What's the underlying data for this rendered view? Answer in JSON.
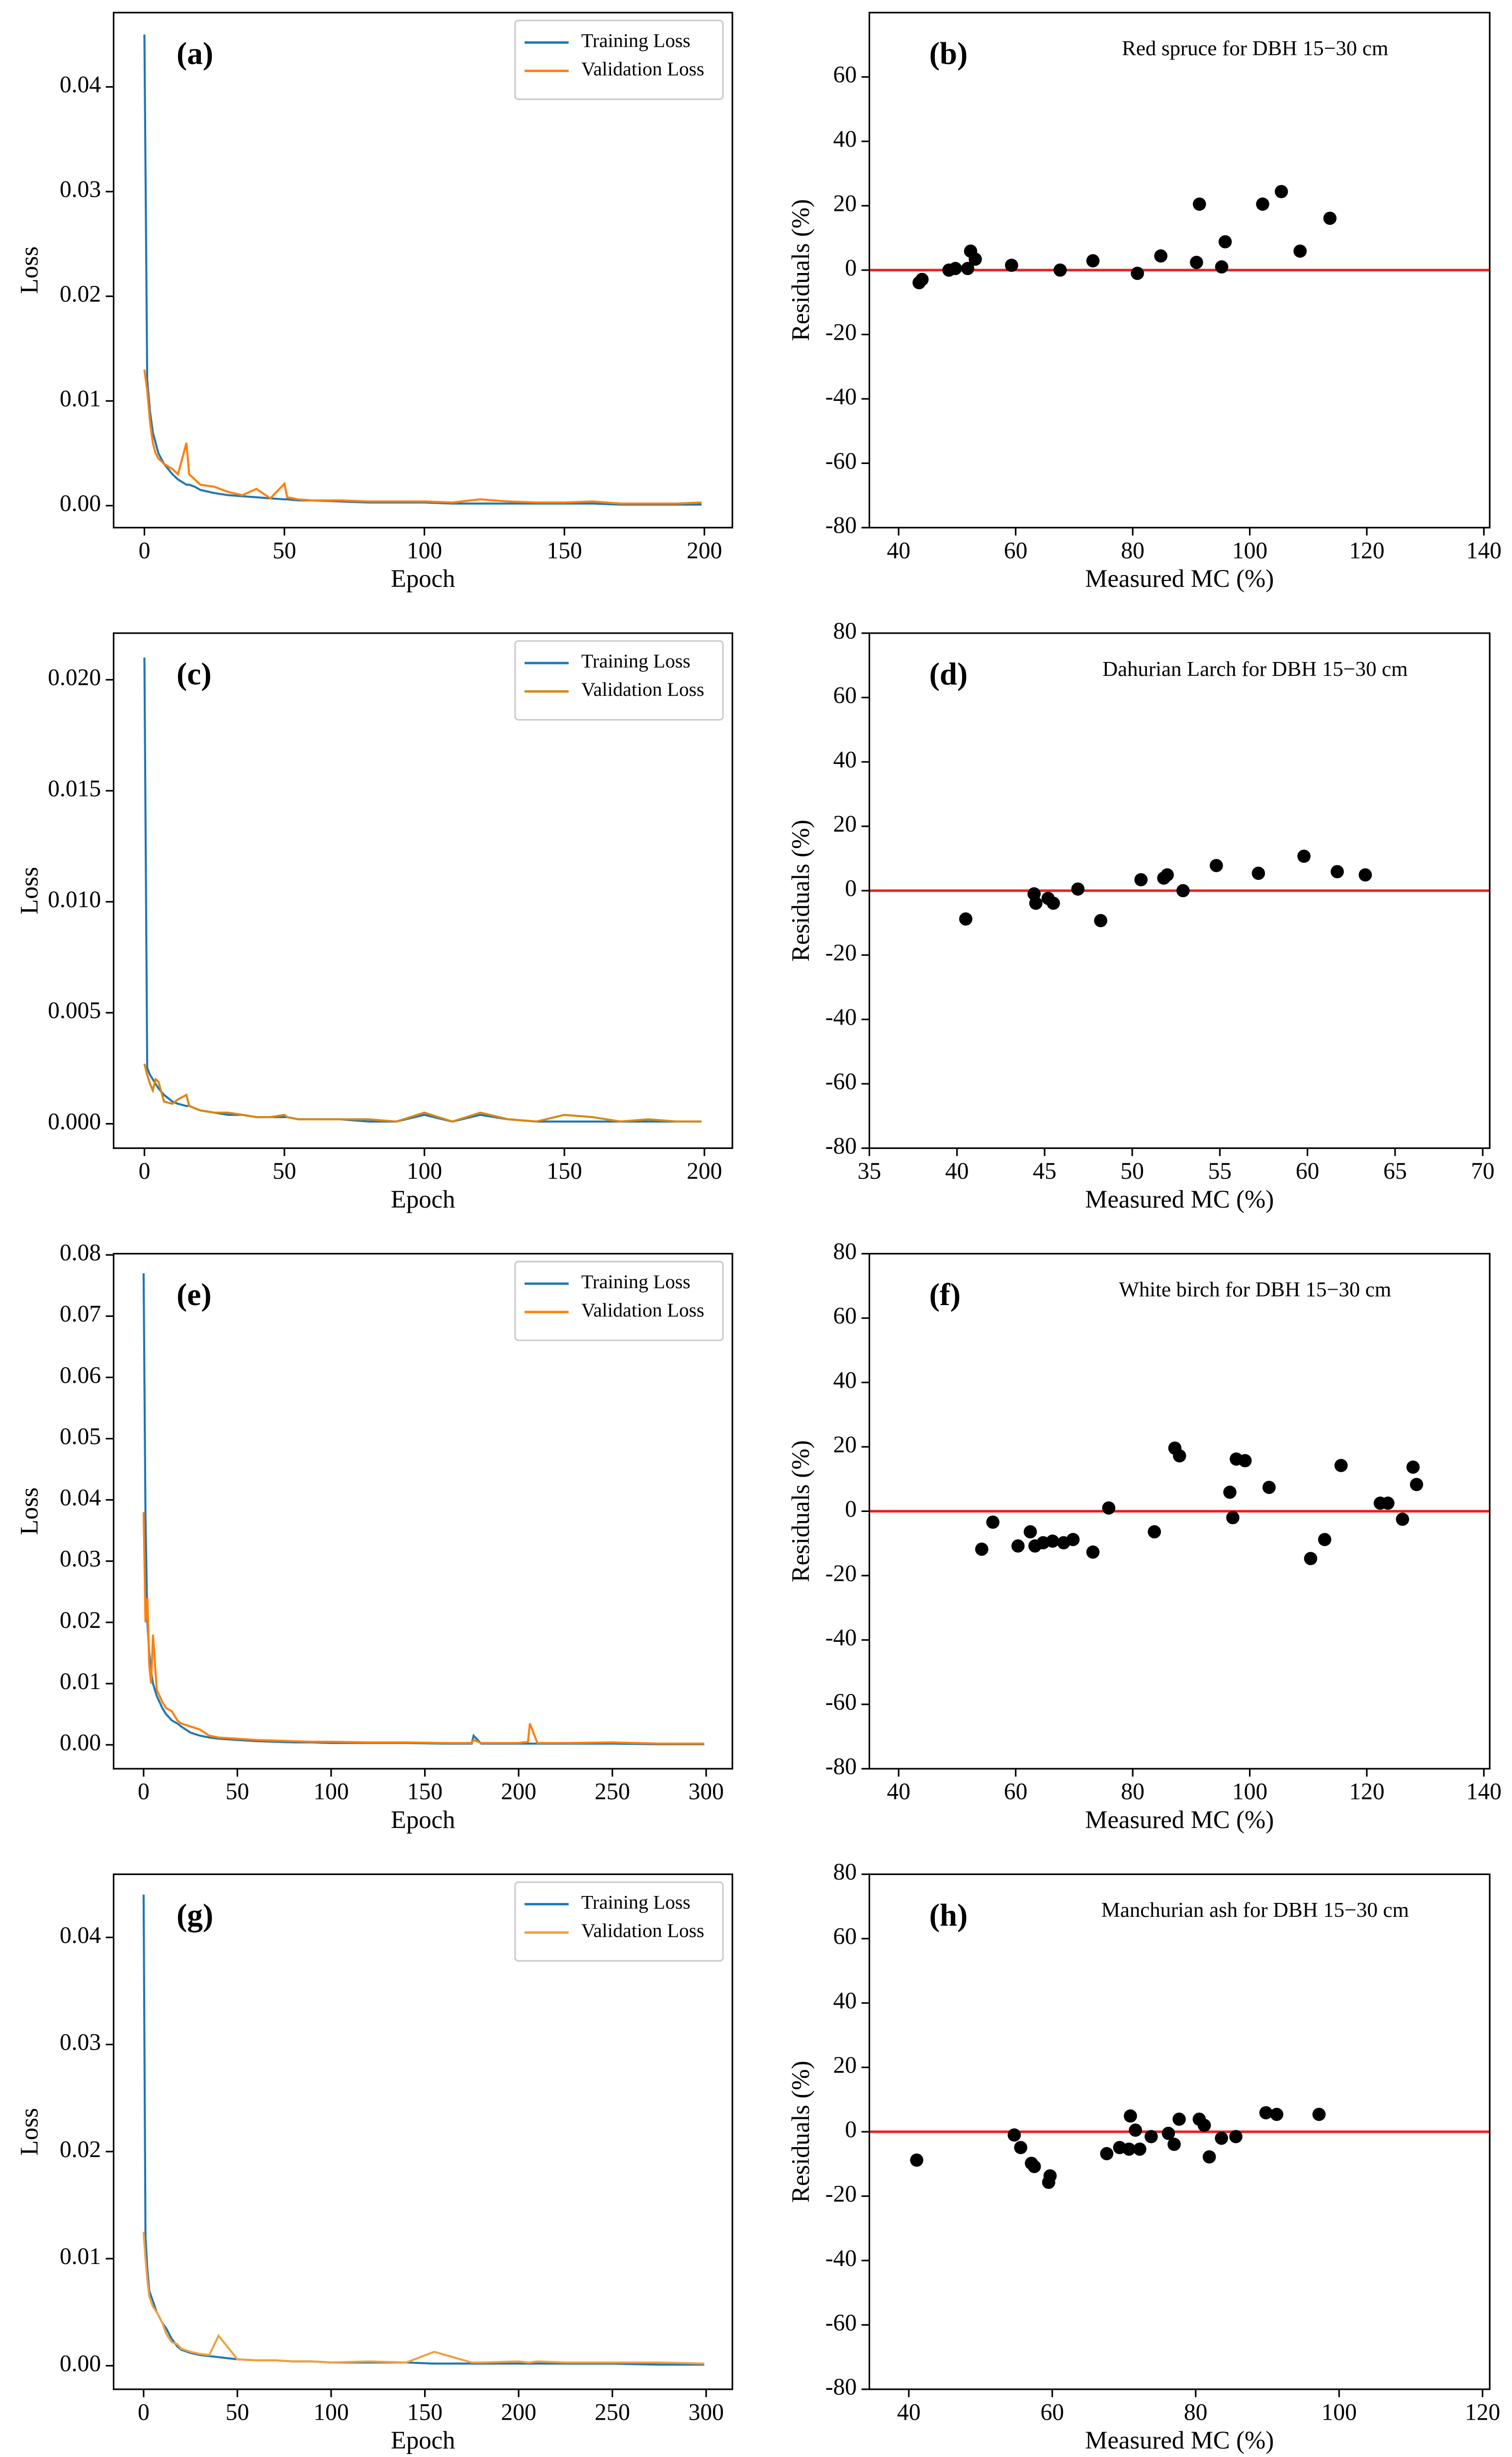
{
  "chart_data": [
    {
      "type": "line",
      "label": "(a)",
      "x_label": "Epoch",
      "y_label": "Loss",
      "legend": "upper right",
      "xlim": [
        -11,
        210
      ],
      "ylim": [
        -0.0021,
        0.0471
      ],
      "xticks": [
        0,
        50,
        100,
        150,
        200
      ],
      "yticks": [
        {
          "value": 0,
          "label": "0.00"
        },
        0.01,
        0.02,
        0.03,
        0.04
      ],
      "x": [
        0,
        1,
        2,
        3,
        4,
        5,
        7,
        10,
        12,
        15,
        16,
        18,
        20,
        25,
        30,
        35,
        40,
        45,
        50,
        51,
        55,
        60,
        70,
        80,
        90,
        100,
        110,
        120,
        130,
        140,
        150,
        160,
        170,
        180,
        190,
        199
      ],
      "series": [
        {
          "name": "Training Loss",
          "color": "#1f77b4",
          "values": [
            0.045,
            0.012,
            0.009,
            0.007,
            0.006,
            0.005,
            0.004,
            0.003,
            0.0025,
            0.002,
            0.002,
            0.0018,
            0.0015,
            0.0012,
            0.001,
            0.0009,
            0.0008,
            0.0007,
            0.0006,
            0.0006,
            0.0005,
            0.0005,
            0.0004,
            0.0003,
            0.0003,
            0.0003,
            0.0002,
            0.0002,
            0.0002,
            0.0002,
            0.0002,
            0.0002,
            0.0001,
            0.0001,
            0.0001,
            0.0001
          ]
        },
        {
          "name": "Validation Loss",
          "color": "#ff7f0e",
          "values": [
            0.013,
            0.011,
            0.008,
            0.006,
            0.005,
            0.0045,
            0.004,
            0.0035,
            0.003,
            0.006,
            0.003,
            0.0025,
            0.002,
            0.0018,
            0.0013,
            0.001,
            0.0016,
            0.0007,
            0.0021,
            0.0008,
            0.0006,
            0.0005,
            0.0005,
            0.0004,
            0.0004,
            0.0004,
            0.0003,
            0.0006,
            0.0004,
            0.0003,
            0.0003,
            0.0004,
            0.0002,
            0.0002,
            0.0002,
            0.0003
          ]
        }
      ]
    },
    {
      "type": "scatter",
      "label": "(b)",
      "title": "Red spruce for DBH 15−30 cm",
      "x_label": "Measured MC (%)",
      "y_label": "Residuals (%)",
      "xlim": [
        35,
        141
      ],
      "ylim": [
        -80,
        80
      ],
      "xticks": [
        40,
        60,
        80,
        100,
        120,
        140
      ],
      "yticks": [
        -80,
        -60,
        -40,
        -20,
        0,
        20,
        40,
        60
      ],
      "reference_line": {
        "y": 0,
        "color": "#e8221f"
      },
      "color": "#000000",
      "x": [
        43.5,
        44,
        48.6,
        49.7,
        51.8,
        52.3,
        53.1,
        59.3,
        67.6,
        73.2,
        80.8,
        84.8,
        90.9,
        91.4,
        95.2,
        95.8,
        102.2,
        105.4,
        108.6,
        113.7
      ],
      "values": [
        -3.9,
        -2.9,
        0,
        0.5,
        0.5,
        5.9,
        3.4,
        1.5,
        0,
        2.9,
        -1,
        4.4,
        2.4,
        20.5,
        1,
        8.8,
        20.5,
        24.4,
        5.9,
        16.1
      ]
    },
    {
      "type": "line",
      "label": "(c)",
      "x_label": "Epoch",
      "y_label": "Loss",
      "legend": "upper right",
      "xlim": [
        -11,
        210
      ],
      "ylim": [
        -0.0011,
        0.0221
      ],
      "xticks": [
        0,
        50,
        100,
        150,
        200
      ],
      "yticks": [
        {
          "value": 0,
          "label": "0.000"
        },
        0.005,
        {
          "value": 0.01,
          "label": "0.010"
        },
        0.015,
        {
          "value": 0.02,
          "label": "0.020"
        }
      ],
      "x": [
        0,
        1,
        2,
        3,
        4,
        5,
        7,
        10,
        12,
        15,
        16,
        18,
        20,
        25,
        30,
        35,
        40,
        45,
        50,
        51,
        55,
        60,
        70,
        80,
        90,
        100,
        110,
        120,
        130,
        140,
        150,
        160,
        170,
        180,
        190,
        199
      ],
      "series": [
        {
          "name": "Training Loss",
          "color": "#1f77b4",
          "values": [
            0.021,
            0.0025,
            0.0022,
            0.002,
            0.0018,
            0.0016,
            0.0013,
            0.001,
            0.0009,
            0.0008,
            0.0008,
            0.0007,
            0.0006,
            0.0005,
            0.0004,
            0.0004,
            0.0003,
            0.0003,
            0.0003,
            0.0003,
            0.0002,
            0.0002,
            0.0002,
            0.0001,
            0.0001,
            0.0004,
            0.0001,
            0.0004,
            0.0002,
            0.0001,
            0.0001,
            0.0001,
            0.0001,
            0.0001,
            0.0001,
            0.0001
          ]
        },
        {
          "name": "Validation Loss",
          "color": "#d9860f",
          "values": [
            0.0027,
            0.0022,
            0.0018,
            0.0015,
            0.002,
            0.0019,
            0.001,
            0.0009,
            0.0011,
            0.0013,
            0.0008,
            0.0007,
            0.0006,
            0.0005,
            0.0005,
            0.0004,
            0.0003,
            0.0003,
            0.0004,
            0.0003,
            0.0002,
            0.0002,
            0.0002,
            0.0002,
            0.0001,
            0.0005,
            0.0001,
            0.0005,
            0.0002,
            0.0001,
            0.0004,
            0.0003,
            0.0001,
            0.0002,
            0.0001,
            0.0001
          ]
        }
      ]
    },
    {
      "type": "scatter",
      "label": "(d)",
      "title": "Dahurian Larch for DBH 15−30 cm",
      "x_label": "Measured MC (%)",
      "y_label": "Residuals (%)",
      "xlim": [
        35,
        70.4
      ],
      "ylim": [
        -80,
        80
      ],
      "xticks": [
        35,
        40,
        45,
        50,
        55,
        60,
        65,
        70
      ],
      "yticks": [
        -80,
        -60,
        -40,
        -20,
        0,
        20,
        40,
        60,
        80
      ],
      "reference_line": {
        "y": 0,
        "color": "#e8221f"
      },
      "color": "#000000",
      "x": [
        40.5,
        44.4,
        44.5,
        45.2,
        45.5,
        46.9,
        48.2,
        50.5,
        51.8,
        52,
        52.9,
        54.8,
        57.2,
        59.8,
        61.7,
        63.3
      ],
      "values": [
        -8.8,
        -1,
        -3.9,
        -2.4,
        -3.9,
        0.5,
        -9.3,
        3.4,
        3.9,
        4.9,
        0,
        7.8,
        5.4,
        10.7,
        5.9,
        4.9
      ]
    },
    {
      "type": "line",
      "label": "(e)",
      "x_label": "Epoch",
      "y_label": "Loss",
      "legend": "upper right",
      "xlim": [
        -16,
        314
      ],
      "ylim": [
        -0.0039,
        0.0802
      ],
      "xticks": [
        0,
        50,
        100,
        150,
        200,
        250,
        300
      ],
      "yticks": [
        {
          "value": 0,
          "label": "0.00"
        },
        0.01,
        0.02,
        0.03,
        0.04,
        0.05,
        0.06,
        0.07,
        0.08
      ],
      "x": [
        0,
        1,
        2,
        3,
        4,
        5,
        7,
        10,
        12,
        15,
        18,
        20,
        25,
        30,
        35,
        40,
        50,
        60,
        70,
        80,
        90,
        100,
        120,
        140,
        160,
        175,
        176,
        180,
        200,
        205,
        206,
        210,
        225,
        250,
        275,
        299
      ],
      "series": [
        {
          "name": "Training Loss",
          "color": "#1f77b4",
          "values": [
            0.077,
            0.037,
            0.02,
            0.015,
            0.012,
            0.01,
            0.008,
            0.006,
            0.005,
            0.004,
            0.0035,
            0.003,
            0.002,
            0.0015,
            0.0012,
            0.001,
            0.0008,
            0.0006,
            0.0005,
            0.0004,
            0.0004,
            0.0003,
            0.0003,
            0.0003,
            0.0002,
            0.0002,
            0.0015,
            0.0002,
            0.0002,
            0.0002,
            0.0002,
            0.0002,
            0.0002,
            0.0002,
            0.0001,
            0.0001
          ]
        },
        {
          "name": "Validation Loss",
          "color": "#ff7f0e",
          "values": [
            0.038,
            0.02,
            0.024,
            0.013,
            0.01,
            0.018,
            0.009,
            0.007,
            0.006,
            0.0055,
            0.004,
            0.0035,
            0.003,
            0.0025,
            0.0015,
            0.0012,
            0.001,
            0.0008,
            0.0007,
            0.0006,
            0.0005,
            0.0005,
            0.0004,
            0.0004,
            0.0003,
            0.0003,
            0.0008,
            0.0003,
            0.0003,
            0.0005,
            0.0035,
            0.0003,
            0.0003,
            0.0004,
            0.0002,
            0.0002
          ]
        }
      ]
    },
    {
      "type": "scatter",
      "label": "(f)",
      "title": "White birch for DBH 15−30 cm",
      "x_label": "Measured MC (%)",
      "y_label": "Residuals (%)",
      "xlim": [
        35,
        141
      ],
      "ylim": [
        -80,
        80
      ],
      "xticks": [
        40,
        60,
        80,
        100,
        120,
        140
      ],
      "yticks": [
        -80,
        -60,
        -40,
        -20,
        0,
        20,
        40,
        60,
        80
      ],
      "reference_line": {
        "y": 0,
        "color": "#e8221f"
      },
      "color": "#000000",
      "x": [
        54.2,
        56.1,
        60.4,
        62.5,
        63.3,
        64.7,
        66.3,
        68.2,
        69.8,
        73.2,
        75.9,
        83.7,
        87.2,
        88,
        96.6,
        97.1,
        97.7,
        99.2,
        103.3,
        110.4,
        112.8,
        115.6,
        122.3,
        123.6,
        126.1,
        127.9,
        128.5
      ],
      "values": [
        -11.8,
        -3.4,
        -10.8,
        -6.4,
        -10.8,
        -9.8,
        -9.3,
        -9.8,
        -8.8,
        -12.7,
        1,
        -6.4,
        19.6,
        17.2,
        5.9,
        -2,
        16.2,
        15.7,
        7.4,
        -14.7,
        -8.8,
        14.2,
        2.5,
        2.5,
        -2.5,
        13.7,
        8.3
      ]
    },
    {
      "type": "line",
      "label": "(g)",
      "x_label": "Epoch",
      "y_label": "Loss",
      "legend": "upper right",
      "xlim": [
        -16,
        314
      ],
      "ylim": [
        -0.0022,
        0.0459
      ],
      "xticks": [
        0,
        50,
        100,
        150,
        200,
        250,
        300
      ],
      "yticks": [
        {
          "value": 0,
          "label": "0.00"
        },
        0.01,
        0.02,
        0.03,
        0.04
      ],
      "x": [
        0,
        1,
        2,
        3,
        4,
        5,
        7,
        10,
        12,
        15,
        18,
        20,
        25,
        30,
        35,
        40,
        50,
        60,
        70,
        80,
        90,
        100,
        120,
        140,
        155,
        175,
        176,
        180,
        200,
        205,
        206,
        210,
        225,
        250,
        275,
        299
      ],
      "series": [
        {
          "name": "Training Loss",
          "color": "#1f77b4",
          "values": [
            0.044,
            0.012,
            0.009,
            0.007,
            0.0065,
            0.006,
            0.005,
            0.004,
            0.0035,
            0.0025,
            0.0018,
            0.0015,
            0.0012,
            0.001,
            0.0009,
            0.0008,
            0.0006,
            0.0005,
            0.0005,
            0.0004,
            0.0004,
            0.0003,
            0.0003,
            0.0003,
            0.0002,
            0.0002,
            0.0002,
            0.0002,
            0.0002,
            0.0002,
            0.0002,
            0.0002,
            0.0002,
            0.0002,
            0.0001,
            0.0001
          ]
        },
        {
          "name": "Validation Loss",
          "color": "#f0a040",
          "values": [
            0.0125,
            0.01,
            0.008,
            0.0065,
            0.006,
            0.0055,
            0.005,
            0.004,
            0.003,
            0.0022,
            0.002,
            0.0016,
            0.0013,
            0.0011,
            0.001,
            0.0028,
            0.0006,
            0.0005,
            0.0005,
            0.0004,
            0.0004,
            0.0003,
            0.0004,
            0.0003,
            0.0013,
            0.0003,
            0.0003,
            0.0003,
            0.0004,
            0.0003,
            0.0003,
            0.0004,
            0.0003,
            0.0003,
            0.0003,
            0.0002
          ]
        }
      ]
    },
    {
      "type": "scatter",
      "label": "(h)",
      "title": "Manchurian ash for DBH 15−30 cm",
      "x_label": "Measured MC (%)",
      "y_label": "Residuals (%)",
      "xlim": [
        34.5,
        121
      ],
      "ylim": [
        -80,
        80
      ],
      "xticks": [
        40,
        60,
        80,
        100,
        120
      ],
      "yticks": [
        -80,
        -60,
        -40,
        -20,
        0,
        20,
        40,
        60,
        80
      ],
      "reference_line": {
        "y": 0,
        "color": "#e8221f"
      },
      "color": "#000000",
      "x": [
        41.1,
        54.7,
        55.6,
        57.1,
        57.5,
        59.7,
        59.5,
        67.6,
        69.4,
        70.7,
        70.9,
        71.6,
        72.2,
        73.8,
        76.2,
        77,
        77.7,
        80.5,
        81.2,
        81.9,
        83.6,
        85.6,
        89.8,
        91.3,
        97.2
      ],
      "values": [
        -8.8,
        -1,
        -4.9,
        -9.8,
        -10.8,
        -13.7,
        -15.7,
        -6.8,
        -4.9,
        -5.4,
        4.9,
        0.5,
        -5.4,
        -1.5,
        -0.5,
        -3.9,
        3.9,
        3.9,
        2,
        -7.8,
        -2,
        -1.5,
        5.9,
        5.4,
        5.4
      ]
    }
  ]
}
